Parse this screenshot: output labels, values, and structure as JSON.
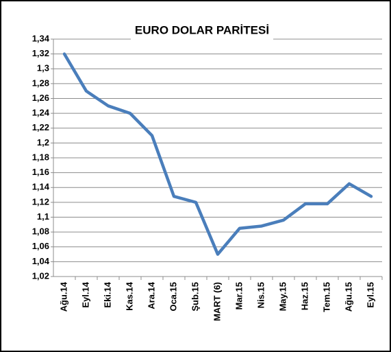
{
  "chart_data": {
    "type": "line",
    "title": "EURO DOLAR PARİTESİ",
    "categories": [
      "Ağu.14",
      "Eyl.14",
      "Eki.14",
      "Kas.14",
      "Ara.14",
      "Oca.15",
      "Şub.15",
      "MART (6)",
      "Mar.15",
      "Nis.15",
      "May.15",
      "Haz.15",
      "Tem.15",
      "Ağu.15",
      "Eyl.15"
    ],
    "series": [
      {
        "color": "#4a7ebb",
        "values": [
          1.32,
          1.27,
          1.25,
          1.24,
          1.21,
          1.128,
          1.12,
          1.05,
          1.085,
          1.088,
          1.096,
          1.118,
          1.118,
          1.145,
          1.128
        ]
      }
    ],
    "ylim": [
      1.02,
      1.34
    ],
    "yticks": [
      {
        "value": 1.02,
        "label": "1,02"
      },
      {
        "value": 1.04,
        "label": "1,04"
      },
      {
        "value": 1.06,
        "label": "1,06"
      },
      {
        "value": 1.08,
        "label": "1,08"
      },
      {
        "value": 1.1,
        "label": "1,1"
      },
      {
        "value": 1.12,
        "label": "1,12"
      },
      {
        "value": 1.14,
        "label": "1,14"
      },
      {
        "value": 1.16,
        "label": "1,16"
      },
      {
        "value": 1.18,
        "label": "1,18"
      },
      {
        "value": 1.2,
        "label": "1,2"
      },
      {
        "value": 1.22,
        "label": "1,22"
      },
      {
        "value": 1.24,
        "label": "1,24"
      },
      {
        "value": 1.26,
        "label": "1,26"
      },
      {
        "value": 1.28,
        "label": "1,28"
      },
      {
        "value": 1.3,
        "label": "1,3"
      },
      {
        "value": 1.32,
        "label": "1,32"
      },
      {
        "value": 1.34,
        "label": "1,34"
      }
    ],
    "grid": true
  }
}
